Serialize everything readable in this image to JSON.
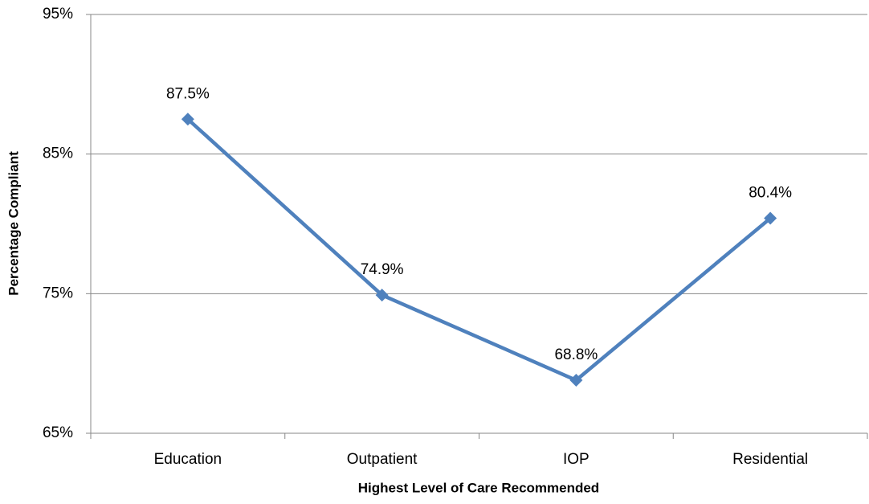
{
  "chart_data": {
    "type": "line",
    "x_label": "Highest Level of Care Recommended",
    "y_label": "Percentage Compliant",
    "categories": [
      "Education",
      "Outpatient",
      "IOP",
      "Residential"
    ],
    "values": [
      87.5,
      74.9,
      68.8,
      80.4
    ],
    "value_labels": [
      "87.5%",
      "74.9%",
      "68.8%",
      "80.4%"
    ],
    "color": "#4f81bd",
    "ylim": [
      65,
      95
    ],
    "yticks": [
      {
        "value": 65,
        "label": "65%"
      },
      {
        "value": 75,
        "label": "75%"
      },
      {
        "value": 85,
        "label": "85%"
      },
      {
        "value": 95,
        "label": "95%"
      }
    ],
    "grid": true
  }
}
